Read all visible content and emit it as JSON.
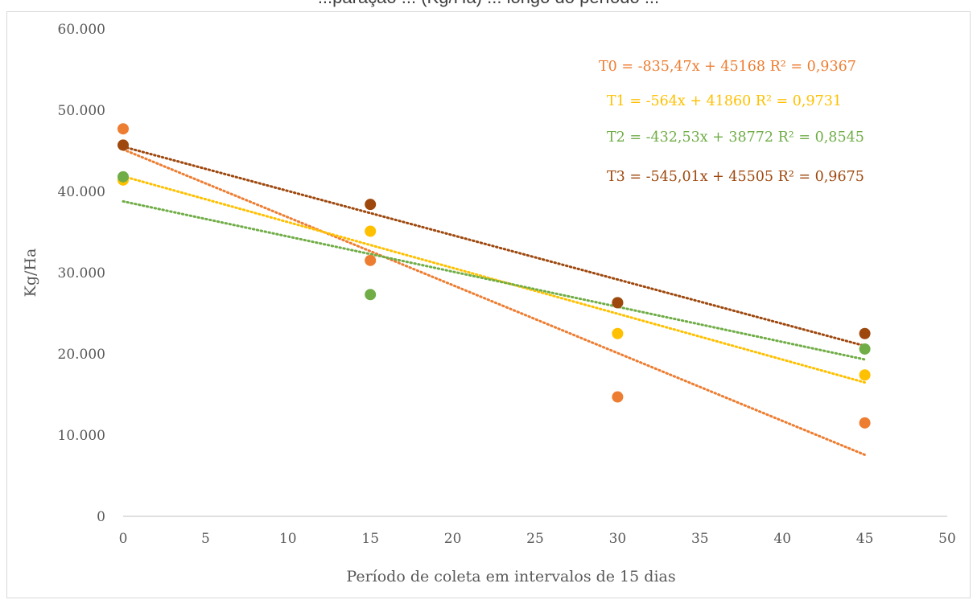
{
  "page": {
    "cropped_title": "...paração ... (Kg/Ha) ... longo do período ..."
  },
  "chart_data": {
    "type": "scatter",
    "title": "",
    "xlabel": "Período de coleta em intervalos de 15 dias",
    "ylabel": "Kg/Ha",
    "xlim": [
      0,
      50
    ],
    "ylim": [
      0,
      60000
    ],
    "x_ticks": [
      0,
      5,
      10,
      15,
      20,
      25,
      30,
      35,
      40,
      45,
      50
    ],
    "y_ticks": [
      0,
      10000,
      20000,
      30000,
      40000,
      50000,
      60000
    ],
    "x_tick_labels": [
      "0",
      "5",
      "10",
      "15",
      "20",
      "25",
      "30",
      "35",
      "40",
      "45",
      "50"
    ],
    "y_tick_labels": [
      "0",
      "10.000",
      "20.000",
      "30.000",
      "40.000",
      "50.000",
      "60.000"
    ],
    "grid": false,
    "legend": "none",
    "series": [
      {
        "name": "T0",
        "color": "#ed7d31",
        "x": [
          0,
          15,
          30,
          45
        ],
        "y": [
          47700,
          31500,
          14700,
          11500
        ],
        "trendline": {
          "slope": -835.47,
          "intercept": 45168,
          "r2": 0.9367
        },
        "equation_label": "T0 = -835,47x + 45168 R² = 0,9367"
      },
      {
        "name": "T1",
        "color": "#ffc000",
        "x": [
          0,
          15,
          30,
          45
        ],
        "y": [
          41400,
          35100,
          22500,
          17400
        ],
        "trendline": {
          "slope": -564,
          "intercept": 41860,
          "r2": 0.9731
        },
        "equation_label": "T1 = -564x + 41860 R² = 0,9731"
      },
      {
        "name": "T2",
        "color": "#70ad47",
        "x": [
          0,
          15,
          30,
          45
        ],
        "y": [
          41800,
          27300,
          26300,
          20600
        ],
        "trendline": {
          "slope": -432.53,
          "intercept": 38772,
          "r2": 0.8545
        },
        "equation_label": "T2 = -432,53x + 38772 R² = 0,8545"
      },
      {
        "name": "T3",
        "color": "#9e480e",
        "x": [
          0,
          15,
          30,
          45
        ],
        "y": [
          45700,
          38400,
          26300,
          22500
        ],
        "trendline": {
          "slope": -545.01,
          "intercept": 45505,
          "r2": 0.9675
        },
        "equation_label": "T3 = -545,01x + 45505 R² = 0,9675"
      }
    ]
  }
}
